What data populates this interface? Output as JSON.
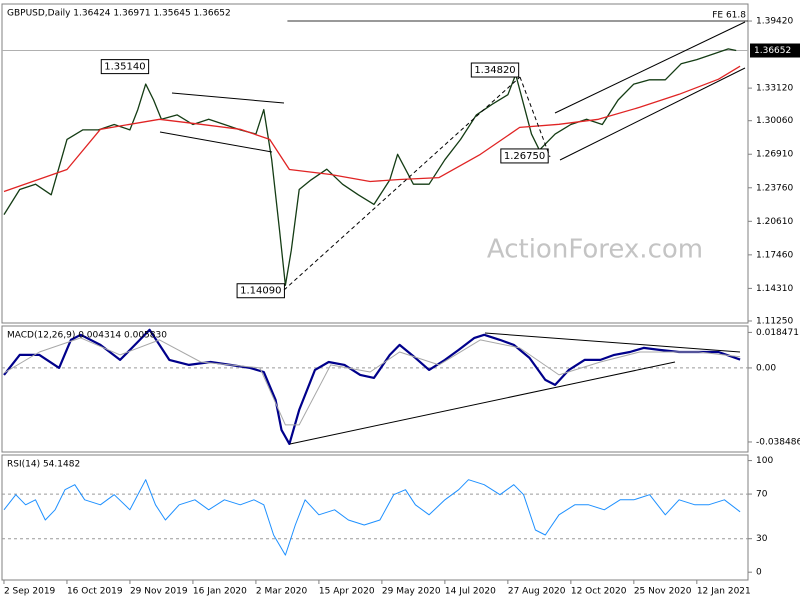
{
  "chart_data": [
    {
      "type": "line",
      "title": "GBPUSD,Daily 1.36424 1.36971 1.35645 1.36652",
      "series": [
        {
          "color": "#143c14",
          "x": [
            0,
            8,
            16,
            24,
            32,
            40,
            48,
            56,
            64,
            68,
            72,
            76,
            80,
            88,
            96,
            104,
            112,
            120,
            128,
            132,
            136,
            140,
            143,
            146,
            150,
            156,
            164,
            172,
            180,
            188,
            196,
            200,
            208,
            216,
            224,
            232,
            240,
            248,
            256,
            260,
            264,
            268,
            272,
            280,
            288,
            296,
            304,
            312,
            320,
            328,
            336,
            344,
            352,
            360,
            368,
            372
          ],
          "values": [
            1.2124,
            1.236,
            1.241,
            1.231,
            1.283,
            1.292,
            1.292,
            1.297,
            1.292,
            1.311,
            1.335,
            1.32,
            1.302,
            1.306,
            1.297,
            1.302,
            1.297,
            1.292,
            1.288,
            1.311,
            1.264,
            1.198,
            1.146,
            1.179,
            1.236,
            1.245,
            1.255,
            1.241,
            1.231,
            1.222,
            1.245,
            1.269,
            1.241,
            1.241,
            1.264,
            1.283,
            1.306,
            1.316,
            1.325,
            1.344,
            1.316,
            1.288,
            1.273,
            1.288,
            1.297,
            1.302,
            1.297,
            1.32,
            1.335,
            1.339,
            1.339,
            1.354,
            1.358,
            1.363,
            1.368,
            1.36652
          ]
        },
        {
          "color": "#e02424",
          "x": [
            0,
            32,
            49,
            79,
            100,
            120,
            135,
            145,
            166,
            186,
            201,
            221,
            242,
            262,
            282,
            302,
            323,
            343,
            363,
            374
          ],
          "values": [
            1.2341,
            1.2548,
            1.2925,
            1.3019,
            1.2972,
            1.2925,
            1.283,
            1.2548,
            1.2501,
            1.2435,
            1.2454,
            1.2472,
            1.2689,
            1.2943,
            1.2972,
            1.3019,
            1.3132,
            1.3254,
            1.3396,
            1.3518
          ]
        }
      ],
      "xlim": [
        -1,
        378
      ],
      "ylim": [
        1.1106,
        1.4102
      ],
      "yticks": [
        {
          "value": 1.3942,
          "label": "1.39420"
        },
        {
          "value": 1.3312,
          "label": "1.33120"
        },
        {
          "value": 1.3006,
          "label": "1.30060"
        },
        {
          "value": 1.2691,
          "label": "1.26910"
        },
        {
          "value": 1.2376,
          "label": "1.23760"
        },
        {
          "value": 1.2061,
          "label": "1.20610"
        },
        {
          "value": 1.1746,
          "label": "1.17460"
        },
        {
          "value": 1.1431,
          "label": "1.14310"
        },
        {
          "value": 1.1125,
          "label": "1.11250"
        }
      ],
      "last_price": {
        "value": 1.36652,
        "label": "1.36652"
      },
      "annotations": [
        {
          "text": "1.35140",
          "value": 1.3514,
          "x": 74
        },
        {
          "text": "1.34820",
          "value": 1.3482,
          "x": 262
        },
        {
          "text": "1.26750",
          "value": 1.2675,
          "x": 277
        },
        {
          "text": "1.14090",
          "value": 1.1409,
          "x": 143
        }
      ],
      "level_line": {
        "text": "FE 61.8",
        "value": 1.3942,
        "x": 144
      },
      "watermark": "ActionForex.com"
    },
    {
      "type": "line",
      "title": "MACD(12,26,9) 0.004314 0.005830",
      "series": [
        {
          "color": "#00008b",
          "width": 2.2,
          "x": [
            0,
            8,
            18,
            28,
            34,
            39,
            49,
            59,
            69,
            74,
            79,
            84,
            94,
            105,
            115,
            125,
            132,
            138,
            141,
            145,
            150,
            158,
            165,
            173,
            181,
            188,
            196,
            201,
            209,
            216,
            224,
            231,
            239,
            244,
            252,
            259,
            267,
            275,
            280,
            287,
            295,
            303,
            310,
            318,
            325,
            333,
            343,
            353,
            363,
            374
          ],
          "values": [
            -0.0036,
            0.0068,
            0.0068,
            0,
            0.0146,
            0.0172,
            0.012,
            0.0042,
            0.0146,
            0.0198,
            0.012,
            0.0042,
            0.0016,
            0.0031,
            0.0016,
            0,
            -0.0021,
            -0.0166,
            -0.0322,
            -0.0395,
            -0.0218,
            -0.001,
            0.0031,
            0.0016,
            -0.0036,
            -0.0052,
            0.0068,
            0.012,
            0.0052,
            -0.001,
            0.0042,
            0.0094,
            0.0156,
            0.0172,
            0.0146,
            0.012,
            0.0052,
            -0.0062,
            -0.0088,
            -0.001,
            0.0042,
            0.0042,
            0.0068,
            0.0083,
            0.0104,
            0.0094,
            0.0083,
            0.0083,
            0.0083,
            0.004314
          ]
        },
        {
          "color": "#a8a8a8",
          "width": 1,
          "x": [
            0,
            18,
            39,
            59,
            79,
            100,
            130,
            143,
            150,
            166,
            186,
            201,
            221,
            242,
            262,
            282,
            303,
            323,
            353,
            374
          ],
          "values": [
            -0.0026,
            0.0083,
            0.0156,
            0.0068,
            0.0146,
            0.0031,
            0,
            -0.0296,
            -0.0296,
            0.0016,
            -0.0021,
            0.0083,
            0.0016,
            0.0146,
            0.0104,
            -0.0036,
            0.0031,
            0.0083,
            0.0083,
            0.00583
          ]
        }
      ],
      "xlim": [
        -1,
        378
      ],
      "ylim": [
        -0.0437,
        0.0218
      ],
      "yticks": [
        0.018471,
        {
          "value": 0,
          "label": "0.00"
        },
        -0.038486
      ],
      "levels": [
        0
      ]
    },
    {
      "type": "line",
      "title": "RSI(14) 54.1482",
      "series": [
        {
          "color": "#1e90ff",
          "width": 1,
          "x": [
            0,
            6,
            11,
            16,
            21,
            26,
            31,
            36,
            41,
            49,
            56,
            64,
            72,
            77,
            82,
            89,
            97,
            104,
            112,
            120,
            127,
            132,
            137,
            143,
            148,
            153,
            160,
            168,
            175,
            183,
            191,
            198,
            204,
            209,
            216,
            224,
            231,
            236,
            244,
            252,
            259,
            264,
            270,
            275,
            282,
            290,
            297,
            305,
            313,
            320,
            328,
            336,
            343,
            351,
            358,
            366,
            374
          ],
          "values": [
            55.9,
            69.4,
            60.4,
            64.9,
            46.8,
            55.9,
            73.9,
            78.4,
            64.9,
            60.4,
            69.4,
            55.9,
            82.9,
            60.4,
            46.8,
            60.4,
            64.9,
            55.9,
            64.9,
            60.4,
            64.9,
            60.4,
            33.3,
            15.3,
            42.3,
            64.9,
            51.4,
            55.9,
            46.8,
            42.3,
            46.8,
            69.4,
            73.9,
            60.4,
            51.4,
            64.9,
            73.9,
            82.9,
            78.4,
            69.4,
            78.4,
            69.4,
            37.8,
            33.3,
            51.4,
            60.4,
            60.4,
            55.9,
            64.9,
            64.9,
            69.4,
            51.4,
            64.9,
            60.4,
            60.4,
            64.9,
            54.1482
          ]
        }
      ],
      "xlim": [
        -1,
        378
      ],
      "ylim": [
        -7,
        105
      ],
      "yticks": [
        100,
        70,
        30,
        0
      ],
      "levels": [
        70,
        30
      ],
      "xticks": [
        {
          "value": 0,
          "label": "2 Sep 2019"
        },
        {
          "value": 32,
          "label": "16 Oct 2019"
        },
        {
          "value": 64,
          "label": "29 Nov 2019"
        },
        {
          "value": 96,
          "label": "16 Jan 2020"
        },
        {
          "value": 128,
          "label": "2 Mar 2020"
        },
        {
          "value": 160,
          "label": "15 Apr 2020"
        },
        {
          "value": 192,
          "label": "29 May 2020"
        },
        {
          "value": 224,
          "label": "14 Jul 2020"
        },
        {
          "value": 256,
          "label": "27 Aug 2020"
        },
        {
          "value": 288,
          "label": "12 Oct 2020"
        },
        {
          "value": 320,
          "label": "25 Nov 2020"
        },
        {
          "value": 352,
          "label": "12 Jan 2021"
        }
      ]
    }
  ]
}
